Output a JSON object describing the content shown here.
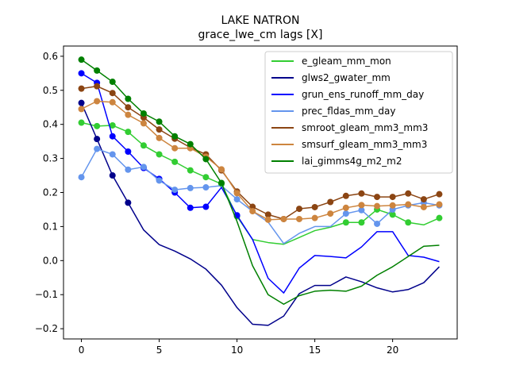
{
  "chart_data": {
    "type": "line",
    "title": "LAKE NATRON",
    "subtitle": "grace_lwe_cm lags [X]",
    "xlabel": "",
    "ylabel": "",
    "xlim": [
      -1.15,
      24.15
    ],
    "ylim": [
      -0.23,
      0.63
    ],
    "xticks": [
      0,
      5,
      10,
      15,
      20
    ],
    "yticks": [
      -0.2,
      -0.1,
      0.0,
      0.1,
      0.2,
      0.3,
      0.4,
      0.5,
      0.6
    ],
    "ytick_labels": [
      "−0.2",
      "−0.1",
      "0.0",
      "0.1",
      "0.2",
      "0.3",
      "0.4",
      "0.5",
      "0.6"
    ],
    "legend_position": "upper right",
    "x": [
      0,
      1,
      2,
      3,
      4,
      5,
      6,
      7,
      8,
      9,
      10,
      11,
      12,
      13,
      14,
      15,
      16,
      17,
      18,
      19,
      20,
      21,
      22,
      23
    ],
    "series": [
      {
        "name": "e_gleam_mm_mon",
        "color": "#32cd32",
        "values": [
          0.405,
          0.395,
          0.397,
          0.378,
          0.338,
          0.312,
          0.29,
          0.265,
          0.245,
          0.225,
          0.13,
          0.062,
          0.053,
          0.048,
          0.068,
          0.088,
          0.098,
          0.112,
          0.112,
          0.15,
          0.135,
          0.112,
          0.105,
          0.125
        ],
        "markers": [
          0,
          1,
          2,
          3,
          4,
          5,
          6,
          7,
          8,
          9,
          10,
          17,
          18,
          19,
          20,
          21,
          23
        ]
      },
      {
        "name": "glws2_gwater_mm",
        "color": "#00008b",
        "values": [
          0.463,
          0.357,
          0.25,
          0.17,
          0.09,
          0.047,
          0.028,
          0.005,
          -0.025,
          -0.072,
          -0.138,
          -0.187,
          -0.19,
          -0.163,
          -0.097,
          -0.073,
          -0.073,
          -0.048,
          -0.062,
          -0.08,
          -0.092,
          -0.085,
          -0.065,
          -0.018
        ],
        "markers": [
          0,
          1,
          2,
          3
        ]
      },
      {
        "name": "grun_ens_runoff_mm_day",
        "color": "#0000ff",
        "values": [
          0.55,
          0.522,
          0.365,
          0.32,
          0.272,
          0.24,
          0.2,
          0.155,
          0.158,
          0.215,
          0.133,
          0.062,
          -0.052,
          -0.095,
          -0.022,
          0.015,
          0.012,
          0.008,
          0.04,
          0.085,
          0.085,
          0.015,
          0.01,
          -0.003
        ],
        "markers": [
          0,
          1,
          2,
          3,
          4,
          5,
          6,
          7,
          8,
          10
        ]
      },
      {
        "name": "prec_fldas_mm_day",
        "color": "#6495ed",
        "values": [
          0.245,
          0.328,
          0.312,
          0.267,
          0.275,
          0.235,
          0.208,
          0.213,
          0.215,
          0.22,
          0.18,
          0.145,
          0.113,
          0.05,
          0.08,
          0.1,
          0.1,
          0.138,
          0.148,
          0.108,
          0.15,
          0.162,
          0.17,
          0.162
        ],
        "markers": [
          0,
          1,
          2,
          3,
          4,
          5,
          6,
          7,
          8,
          10,
          17,
          18,
          19,
          20,
          21,
          22,
          23
        ]
      },
      {
        "name": "smroot_gleam_mm3_mm3",
        "color": "#8b4513",
        "values": [
          0.505,
          0.512,
          0.492,
          0.45,
          0.42,
          0.385,
          0.358,
          0.332,
          0.312,
          0.265,
          0.203,
          0.158,
          0.135,
          0.122,
          0.152,
          0.157,
          0.172,
          0.19,
          0.197,
          0.187,
          0.187,
          0.197,
          0.18,
          0.195
        ],
        "markers": [
          0,
          1,
          2,
          3,
          4,
          5,
          6,
          7,
          8,
          9,
          10,
          11,
          12,
          13,
          14,
          15,
          16,
          17,
          18,
          19,
          20,
          21,
          22,
          23
        ]
      },
      {
        "name": "smsurf_gleam_mm3_mm3",
        "color": "#cd853f",
        "values": [
          0.445,
          0.468,
          0.465,
          0.428,
          0.403,
          0.36,
          0.33,
          0.33,
          0.305,
          0.268,
          0.198,
          0.145,
          0.12,
          0.122,
          0.122,
          0.125,
          0.138,
          0.155,
          0.163,
          0.16,
          0.162,
          0.165,
          0.157,
          0.165
        ],
        "markers": [
          0,
          1,
          2,
          3,
          4,
          5,
          6,
          7,
          8,
          9,
          10,
          11,
          12,
          13,
          14,
          15,
          16,
          17,
          18,
          19,
          20,
          21,
          22,
          23
        ]
      },
      {
        "name": "lai_gimms4g_m2_m2",
        "color": "#008000",
        "values": [
          0.59,
          0.558,
          0.525,
          0.475,
          0.432,
          0.408,
          0.365,
          0.342,
          0.298,
          0.228,
          0.115,
          -0.015,
          -0.1,
          -0.128,
          -0.103,
          -0.09,
          -0.087,
          -0.09,
          -0.075,
          -0.043,
          -0.018,
          0.012,
          0.042,
          0.045
        ],
        "markers": [
          0,
          1,
          2,
          3,
          4,
          5,
          6,
          7,
          8,
          9
        ]
      }
    ]
  }
}
